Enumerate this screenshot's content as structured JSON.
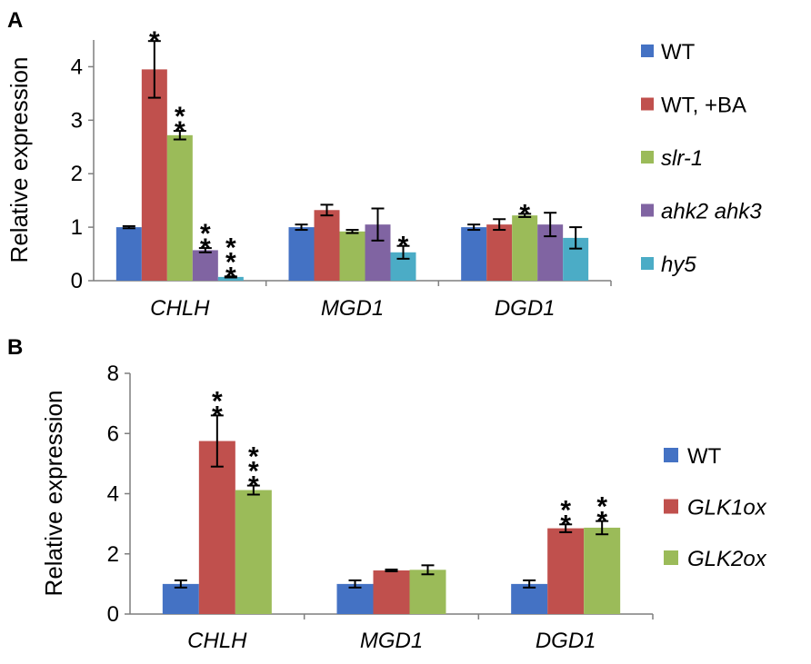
{
  "colors": {
    "WT": "#4472C4",
    "WT_BA": "#C0504D",
    "slr1": "#9BBB59",
    "ahk": "#8064A2",
    "hy5": "#4BACC6",
    "GLK1ox": "#C0504D",
    "GLK2ox": "#9BBB59"
  },
  "chart_data": [
    {
      "panel": "A",
      "type": "bar",
      "ylabel": "Relative expression",
      "ylim": [
        0,
        4.5
      ],
      "yticks": [
        "0",
        "1",
        "2",
        "3",
        "4"
      ],
      "categories": [
        "CHLH",
        "MGD1",
        "DGD1"
      ],
      "series": [
        {
          "name": "WT",
          "italic": false,
          "color": "#4472C4",
          "values": [
            1.0,
            1.0,
            1.0
          ],
          "errors": [
            0.02,
            0.05,
            0.05
          ],
          "stars": [
            "",
            "",
            ""
          ]
        },
        {
          "name": "WT, +BA",
          "italic": false,
          "color": "#C0504D",
          "values": [
            3.95,
            1.32,
            1.05
          ],
          "errors": [
            0.53,
            0.1,
            0.1
          ],
          "stars": [
            "*",
            "",
            ""
          ]
        },
        {
          "name": "slr-1",
          "italic": true,
          "color": "#9BBB59",
          "values": [
            2.72,
            0.92,
            1.22
          ],
          "errors": [
            0.08,
            0.03,
            0.03
          ],
          "stars": [
            "**",
            "",
            "*"
          ]
        },
        {
          "name": "ahk2 ahk3",
          "italic": true,
          "color": "#8064A2",
          "values": [
            0.57,
            1.05,
            1.05
          ],
          "errors": [
            0.04,
            0.3,
            0.22
          ],
          "stars": [
            "**",
            "",
            ""
          ]
        },
        {
          "name": "hy5",
          "italic": true,
          "color": "#4BACC6",
          "values": [
            0.07,
            0.53,
            0.8
          ],
          "errors": [
            0.01,
            0.12,
            0.2
          ],
          "stars": [
            "***",
            "*",
            ""
          ]
        }
      ]
    },
    {
      "panel": "B",
      "type": "bar",
      "ylabel": "Relative expression",
      "ylim": [
        0,
        8
      ],
      "yticks": [
        "0",
        "2",
        "4",
        "6",
        "8"
      ],
      "categories": [
        "CHLH",
        "MGD1",
        "DGD1"
      ],
      "series": [
        {
          "name": "WT",
          "italic": false,
          "color": "#4472C4",
          "values": [
            1.0,
            1.0,
            1.0
          ],
          "errors": [
            0.12,
            0.12,
            0.12
          ],
          "stars": [
            "",
            "",
            ""
          ]
        },
        {
          "name": "GLK1ox",
          "italic": true,
          "color": "#C0504D",
          "values": [
            5.75,
            1.45,
            2.85
          ],
          "errors": [
            0.85,
            0.03,
            0.13
          ],
          "stars": [
            "**",
            "",
            "**"
          ]
        },
        {
          "name": "GLK2ox",
          "italic": true,
          "color": "#9BBB59",
          "values": [
            4.12,
            1.47,
            2.87
          ],
          "errors": [
            0.15,
            0.15,
            0.22
          ],
          "stars": [
            "***",
            "",
            "**"
          ]
        }
      ]
    }
  ]
}
